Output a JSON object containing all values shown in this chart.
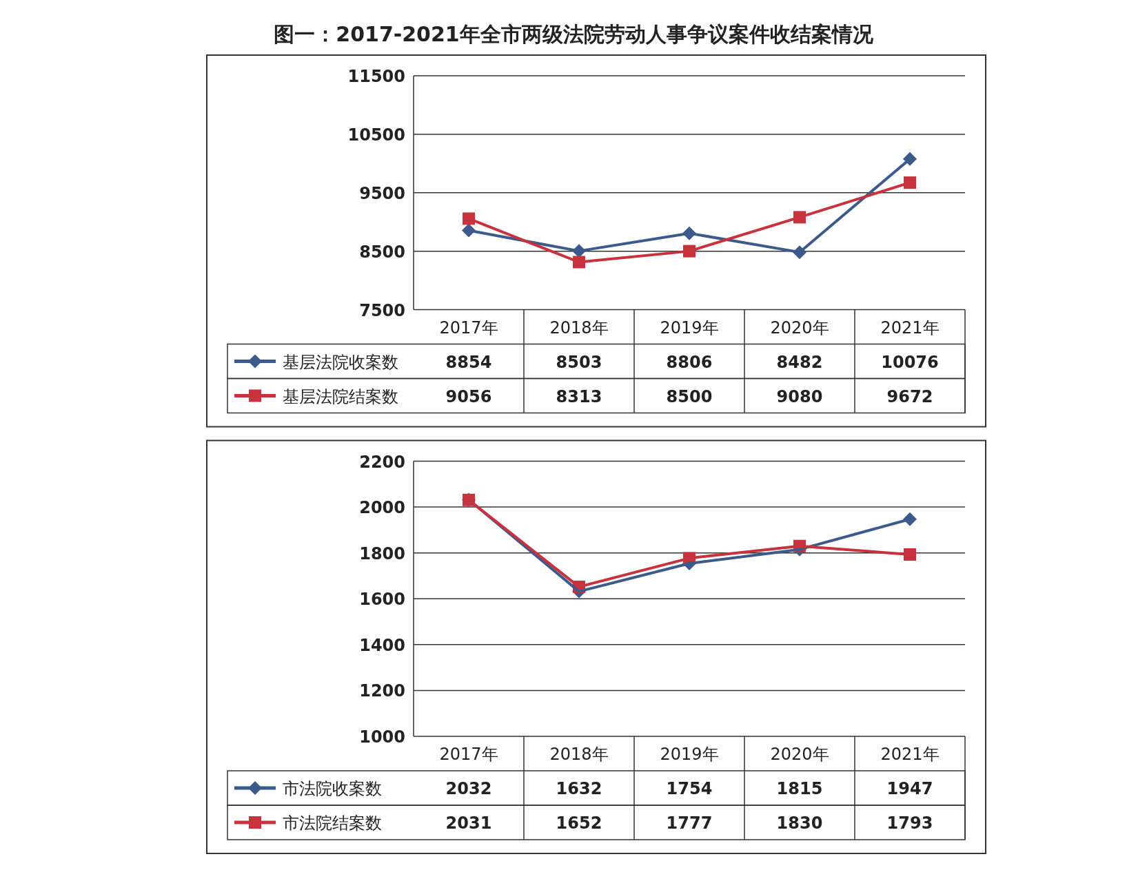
{
  "chart_data": [
    {
      "type": "line",
      "title": "图一：2017-2021年全市两级法院劳动人事争议案件收结案情况",
      "categories": [
        "2017年",
        "2018年",
        "2019年",
        "2020年",
        "2021年"
      ],
      "series": [
        {
          "name": "基层法院收案数",
          "color": "#3d5a8c",
          "marker": "diamond",
          "values": [
            8854,
            8503,
            8806,
            8482,
            10076
          ]
        },
        {
          "name": "基层法院结案数",
          "color": "#c8323c",
          "marker": "square",
          "values": [
            9056,
            8313,
            8500,
            9080,
            9672
          ]
        }
      ],
      "ylim": [
        7500,
        11500
      ],
      "yticks": [
        {
          "value": 7500,
          "label": "7500"
        },
        {
          "value": 8500,
          "label": "8500"
        },
        {
          "value": 9500,
          "label": "9500"
        },
        {
          "value": 10500,
          "label": "10500"
        },
        {
          "value": 11500,
          "label": "11500"
        }
      ],
      "grid": "y",
      "legend": "bottom",
      "data_labels": true
    },
    {
      "type": "line",
      "categories": [
        "2017年",
        "2018年",
        "2019年",
        "2020年",
        "2021年"
      ],
      "series": [
        {
          "name": "市法院收案数",
          "color": "#3d5a8c",
          "marker": "diamond",
          "values": [
            2032,
            1632,
            1754,
            1815,
            1947
          ]
        },
        {
          "name": "市法院结案数",
          "color": "#c8323c",
          "marker": "square",
          "values": [
            2031,
            1652,
            1777,
            1830,
            1793
          ]
        }
      ],
      "ylim": [
        1000,
        2200
      ],
      "yticks": [
        1000,
        1200,
        1400,
        1600,
        1800,
        2000,
        2200
      ],
      "grid": "y",
      "legend": "bottom",
      "data_labels": true
    }
  ]
}
